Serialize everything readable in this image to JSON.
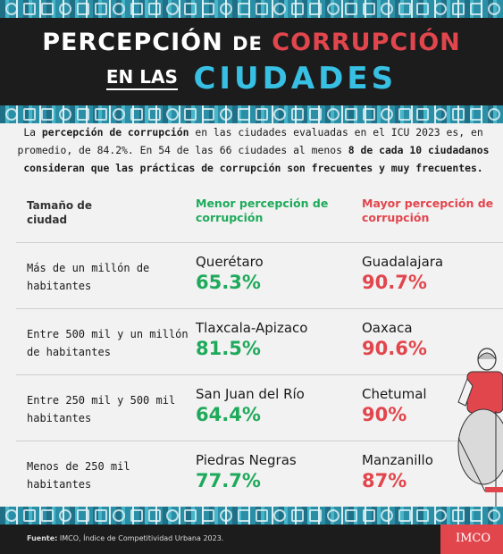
{
  "title": {
    "word1": "PERCEPCIÓN",
    "word2": "DE",
    "word3": "CORRUPCIÓN",
    "word4": "EN LAS",
    "word5": "CIUDADES"
  },
  "intro": {
    "p1": "La ",
    "b1": "percepción de corrupción",
    "p2": " en las ciudades evaluadas en el ICU 2023 es, en promedio, de 84.2%. En 54 de las 66 ciudades al menos ",
    "b2": "8 de cada 10 ciudadanos consideran que las prácticas de corrupción son frecuentes y muy frecuentes."
  },
  "table": {
    "headers": {
      "size": "Tamaño de ciudad",
      "min": "Menor percepción de corrupción",
      "max": "Mayor percepción de corrupción"
    },
    "rows": [
      {
        "size": "Más de un millón de habitantes",
        "min_city": "Querétaro",
        "min_pct": "65.3%",
        "max_city": "Guadalajara",
        "max_pct": "90.7%"
      },
      {
        "size": "Entre 500 mil y un millón de habitantes",
        "min_city": "Tlaxcala-Apizaco",
        "min_pct": "81.5%",
        "max_city": "Oaxaca",
        "max_pct": "90.6%"
      },
      {
        "size": "Entre 250 mil y 500 mil habitantes",
        "min_city": "San Juan del Río",
        "min_pct": "64.4%",
        "max_city": "Chetumal",
        "max_pct": "90%"
      },
      {
        "size": "Menos de 250 mil habitantes",
        "min_city": "Piedras Negras",
        "min_pct": "77.7%",
        "max_city": "Manzanillo",
        "max_pct": "87%"
      }
    ]
  },
  "footer": {
    "source_label": "Fuente:",
    "source_text": " IMCO, Índice de Competitividad Urbana 2023.",
    "logo": "IMCO"
  },
  "colors": {
    "green": "#1faa5b",
    "red": "#e2464d",
    "cyan": "#37c0e3",
    "dark": "#1c1c1c"
  },
  "icons": {
    "illustration": "person-illustration-icon",
    "pattern": "city-pattern-icon"
  }
}
